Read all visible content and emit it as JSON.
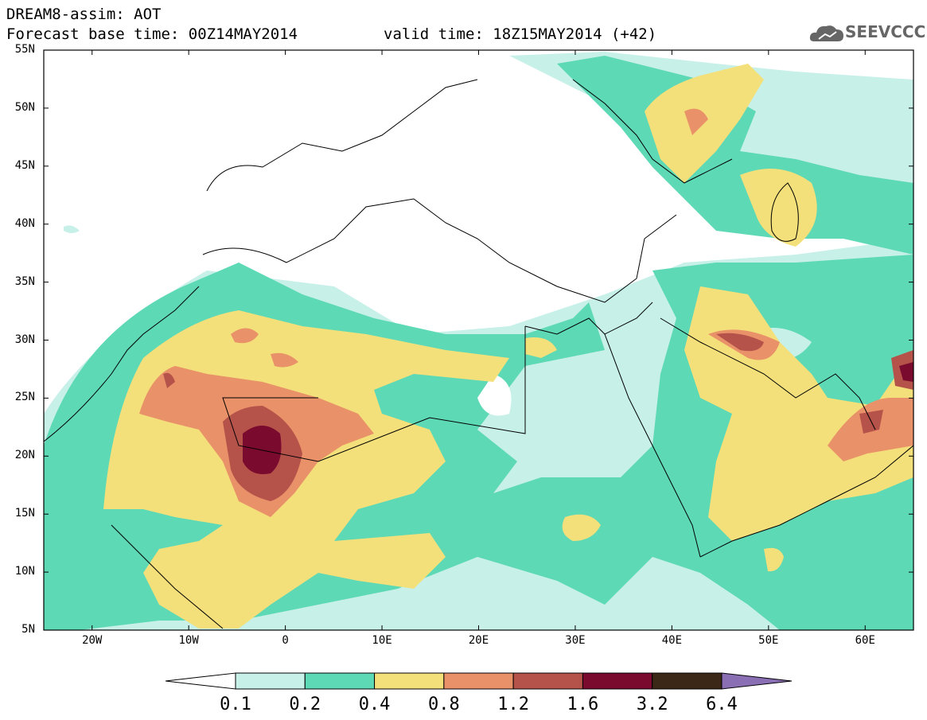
{
  "title": {
    "line1": "DREAM8-assim: AOT",
    "line2": "Forecast base time: 00Z14MAY2014",
    "valid": "valid time: 18Z15MAY2014 (+42)"
  },
  "logo": {
    "text": "SEEVCCC",
    "icon": "cloud-icon"
  },
  "map": {
    "lat_labels": [
      "55N",
      "50N",
      "45N",
      "40N",
      "35N",
      "30N",
      "25N",
      "20N",
      "15N",
      "10N",
      "5N"
    ],
    "lon_labels": [
      "20W",
      "10W",
      "0",
      "10E",
      "20E",
      "30E",
      "40E",
      "50E",
      "60E"
    ],
    "lat_range": [
      5,
      55
    ],
    "lon_range": [
      -25,
      65
    ]
  },
  "colorbar": {
    "labels": [
      "0.1",
      "0.2",
      "0.4",
      "0.8",
      "1.2",
      "1.6",
      "3.2",
      "6.4"
    ],
    "colors": [
      "#ffffff",
      "#c7f0e8",
      "#5ed9b6",
      "#f3e07a",
      "#e99168",
      "#b5534a",
      "#7a0a2e",
      "#3c2816",
      "#8a6fb5"
    ]
  }
}
